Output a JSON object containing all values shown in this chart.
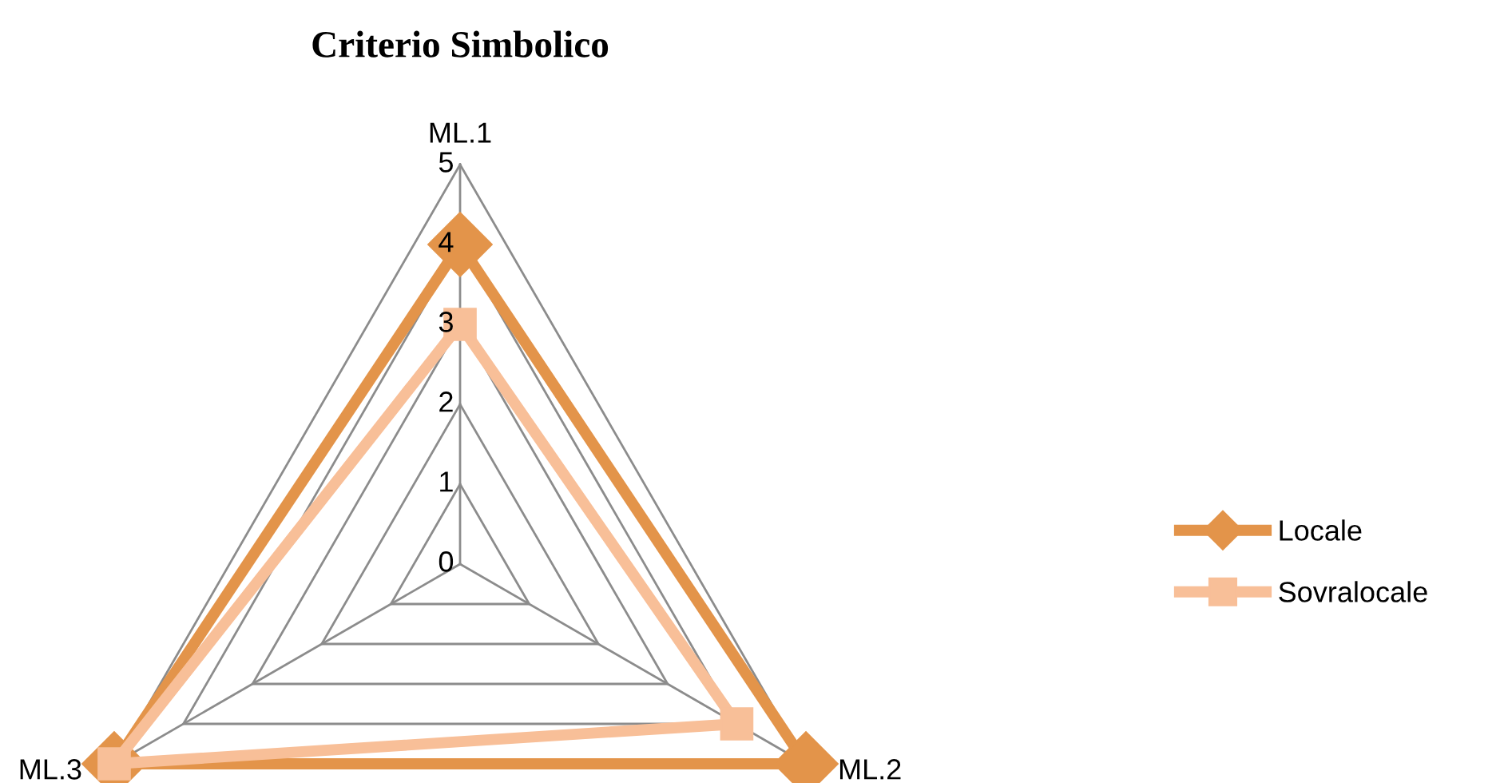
{
  "chart_data": {
    "type": "radar",
    "title": "Criterio Simbolico",
    "categories": [
      "ML.1",
      "ML.2",
      "ML.3"
    ],
    "series": [
      {
        "name": "Locale",
        "color": "#e3944a",
        "values": [
          4,
          5,
          5
        ],
        "marker": "diamond"
      },
      {
        "name": "Sovralocale",
        "color": "#f8bf98",
        "values": [
          3,
          4,
          5
        ],
        "marker": "square"
      }
    ],
    "ylim": [
      0,
      5
    ],
    "yticks": [
      0,
      1,
      2,
      3,
      4,
      5
    ],
    "grid": true,
    "legend": "right"
  }
}
